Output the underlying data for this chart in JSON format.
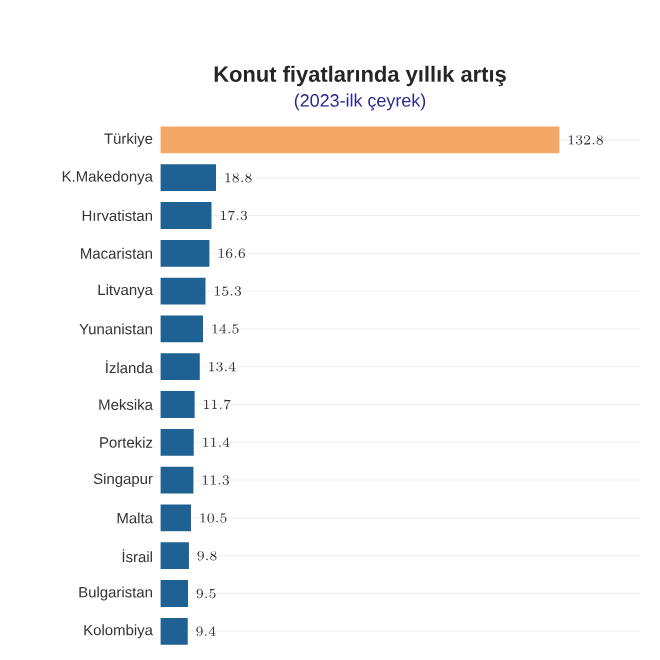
{
  "chart_data": {
    "type": "bar",
    "orientation": "horizontal",
    "title": "Konut fiyatlarında yıllık artış",
    "subtitle": "(2023-ilk çeyrek)",
    "categories": [
      "Türkiye",
      "K.Makedonya",
      "Hırvatistan",
      "Macaristan",
      "Litvanya",
      "Yunanistan",
      "İzlanda",
      "Meksika",
      "Portekiz",
      "Singapur",
      "Malta",
      "İsrail",
      "Bulgaristan",
      "Kolombiya"
    ],
    "values": [
      132.8,
      18.8,
      17.3,
      16.6,
      15.3,
      14.5,
      13.4,
      11.7,
      11.4,
      11.3,
      10.5,
      9.8,
      9.5,
      9.4
    ],
    "colors": [
      "#f2a766",
      "#1f6192",
      "#1f6192",
      "#1f6192",
      "#1f6192",
      "#1f6192",
      "#1f6192",
      "#1f6192",
      "#1f6192",
      "#1f6192",
      "#1f6192",
      "#1f6192",
      "#1f6192",
      "#1f6192"
    ],
    "data_labels": true,
    "grid": "y"
  }
}
